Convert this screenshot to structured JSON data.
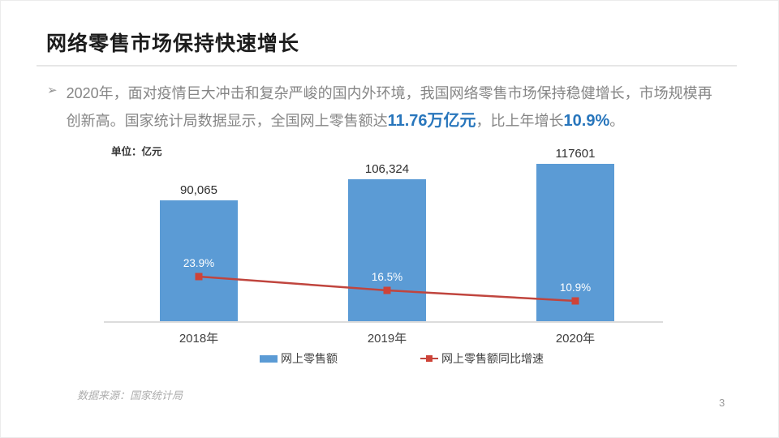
{
  "slide": {
    "title": "网络零售市场保持快速增长",
    "footer": "数据来源：国家统计局",
    "page_number": "3"
  },
  "paragraph": {
    "bullet": "➢",
    "line1": "2020年，面对疫情巨大冲击和复杂严峻的国内外环境，我国网络零售市场保持稳健增长，市场规模再",
    "line2_pre": "创新高。国家统计局数据显示，全国网上零售额达",
    "highlight1": "11.76万亿元",
    "line2_mid": "，比上年增长",
    "highlight2": "10.9%",
    "line2_end": "。"
  },
  "chart_data": {
    "type": "bar+line combo",
    "unit_label": "单位：亿元",
    "categories": [
      "2018年",
      "2019年",
      "2020年"
    ],
    "series": [
      {
        "name": "网上零售额",
        "type": "bar",
        "values": [
          90065,
          106324,
          117601
        ],
        "labels": [
          "90,065",
          "106,324",
          "117601"
        ]
      },
      {
        "name": "网上零售额同比增速",
        "type": "line",
        "values": [
          23.9,
          16.5,
          10.9
        ],
        "labels": [
          "23.9%",
          "16.5%",
          "10.9%"
        ]
      }
    ],
    "legend_position": "bottom",
    "gridlines": false
  },
  "colors": {
    "bar": "#5B9BD5",
    "line": "#C0453E",
    "marker": "#CE4338",
    "highlight": "#2876BC",
    "axis": "#dcdcdc"
  }
}
